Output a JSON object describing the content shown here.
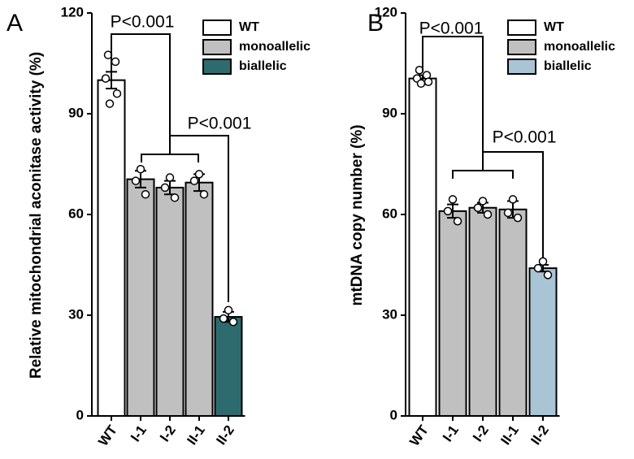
{
  "chart_data": [
    {
      "type": "bar",
      "panel_label": "A",
      "y_label": "Relative mitochondrial aconitase activity (%)",
      "categories": [
        "WT",
        "I-1",
        "I-2",
        "II-1",
        "II-2"
      ],
      "ylim": [
        0,
        120
      ],
      "yticks": [
        0,
        30,
        60,
        90,
        120
      ],
      "series": [
        {
          "name": "WT",
          "color": "#ffffff",
          "values": [
            100,
            null,
            null,
            null,
            null
          ],
          "errors": [
            2.5,
            null,
            null,
            null,
            null
          ],
          "points": [
            [
              107.5,
              105.5,
              100.5,
              96,
              93
            ],
            null,
            null,
            null,
            null
          ]
        },
        {
          "name": "monoallelic",
          "color": "#c0c0c0",
          "values": [
            null,
            70.5,
            68,
            69.5,
            null
          ],
          "errors": [
            null,
            2.5,
            2,
            2.5,
            null
          ],
          "points": [
            null,
            [
              73.5,
              70,
              66
            ],
            [
              71,
              68,
              65
            ],
            [
              72,
              70,
              66
            ],
            null
          ]
        },
        {
          "name": "biallelic",
          "color": "#2e6b6e",
          "values": [
            null,
            null,
            null,
            null,
            29.5
          ],
          "errors": [
            null,
            null,
            null,
            null,
            1.5
          ],
          "points": [
            null,
            null,
            null,
            null,
            [
              31.5,
              29,
              28
            ]
          ]
        }
      ],
      "annotations": [
        "P<0.001",
        "P<0.001"
      ]
    },
    {
      "type": "bar",
      "panel_label": "B",
      "y_label": "mtDNA copy number (%)",
      "categories": [
        "WT",
        "I-1",
        "I-2",
        "II-1",
        "II-2"
      ],
      "ylim": [
        0,
        120
      ],
      "yticks": [
        0,
        30,
        60,
        90,
        120
      ],
      "series": [
        {
          "name": "WT",
          "color": "#ffffff",
          "values": [
            100.5,
            null,
            null,
            null,
            null
          ],
          "errors": [
            1,
            null,
            null,
            null,
            null
          ],
          "points": [
            [
              103,
              101.5,
              100.5,
              99.5,
              99
            ],
            null,
            null,
            null,
            null
          ]
        },
        {
          "name": "monoallelic",
          "color": "#c0c0c0",
          "values": [
            null,
            61,
            62,
            61.5,
            null
          ],
          "errors": [
            null,
            2,
            1.5,
            2.5,
            null
          ],
          "points": [
            null,
            [
              64.5,
              61,
              58
            ],
            [
              64,
              62,
              60
            ],
            [
              64.5,
              60.5,
              59
            ],
            null
          ]
        },
        {
          "name": "biallelic",
          "color": "#a9c4d4",
          "values": [
            null,
            null,
            null,
            null,
            44
          ],
          "errors": [
            null,
            null,
            null,
            null,
            1
          ],
          "points": [
            null,
            null,
            null,
            null,
            [
              46,
              44,
              42
            ]
          ]
        }
      ],
      "annotations": [
        "P<0.001",
        "P<0.001"
      ]
    }
  ]
}
